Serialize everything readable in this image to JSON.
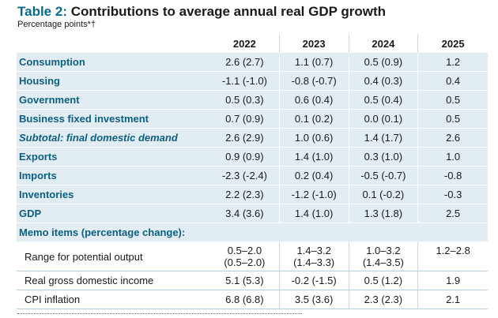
{
  "title": {
    "number": "Table 2:",
    "text": "Contributions to average annual real GDP growth"
  },
  "subtitle": "Percentage points*†",
  "columns": [
    "2022",
    "2023",
    "2024",
    "2025"
  ],
  "rows": [
    {
      "label": "Consumption",
      "values": [
        "2.6 (2.7)",
        "1.1 (0.7)",
        "0.5 (0.9)",
        "1.2"
      ]
    },
    {
      "label": "Housing",
      "values": [
        "-1.1 (-1.0)",
        "-0.8 (-0.7)",
        "0.4 (0.3)",
        "0.4"
      ]
    },
    {
      "label": "Government",
      "values": [
        "0.5 (0.3)",
        "0.6 (0.4)",
        "0.5 (0.4)",
        "0.5"
      ]
    },
    {
      "label": "Business fixed investment",
      "values": [
        "0.7 (0.9)",
        "0.1 (0.2)",
        "0.0 (0.1)",
        "0.5"
      ]
    },
    {
      "label": "Subtotal: final domestic demand",
      "values": [
        "2.6 (2.9)",
        "1.0 (0.6)",
        "1.4 (1.7)",
        "2.6"
      ]
    },
    {
      "label": "Exports",
      "values": [
        "0.9 (0.9)",
        "1.4 (1.0)",
        "0.3 (1.0)",
        "1.0"
      ]
    },
    {
      "label": "Imports",
      "values": [
        "-2.3 (-2.4)",
        "0.2 (0.4)",
        "-0.5 (-0.7)",
        "-0.8"
      ]
    },
    {
      "label": "Inventories",
      "values": [
        "2.2 (2.3)",
        "-1.2 (-1.0)",
        "0.1 (-0.2)",
        "-0.3"
      ]
    },
    {
      "label": "GDP",
      "values": [
        "3.4 (3.6)",
        "1.4 (1.0)",
        "1.3 (1.8)",
        "2.5"
      ]
    }
  ],
  "memo": {
    "heading": "Memo items (percentage change):",
    "potential": {
      "label": "Range for potential output",
      "values": [
        [
          "0.5–2.0",
          "(0.5–2.0)"
        ],
        [
          "1.4–3.2",
          "(1.4–3.3)"
        ],
        [
          "1.0–3.2",
          "(1.4–3.5)"
        ],
        [
          "1.2–2.8",
          ""
        ]
      ]
    },
    "gdi": {
      "label": "Real gross domestic income",
      "values": [
        "5.1 (5.3)",
        "-0.2 (-1.5)",
        "0.5 (1.2)",
        "1.9"
      ]
    },
    "cpi": {
      "label": "CPI inflation",
      "values": [
        "6.8 (6.8)",
        "3.5 (3.6)",
        "2.3 (2.3)",
        "2.1"
      ]
    }
  }
}
